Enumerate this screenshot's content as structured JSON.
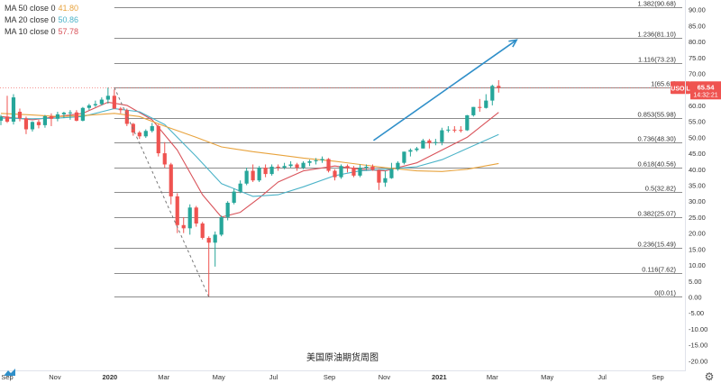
{
  "legend": [
    {
      "label": "MA 50 close 0",
      "value": "41.80",
      "color": "#e8a33d"
    },
    {
      "label": "MA 20 close 0",
      "value": "50.86",
      "color": "#4bb3c8"
    },
    {
      "label": "MA 10 close 0",
      "value": "57.78",
      "color": "#d9535a"
    }
  ],
  "chart_data": {
    "type": "candlestick",
    "title": "美国原油期货周图",
    "symbol": "USOIL",
    "last_price": "65.54",
    "countdown": "14:32:21",
    "up_color": "#26a69a",
    "down_color": "#ef5350",
    "ylim": [
      -23,
      93
    ],
    "y_ticks": [
      90,
      85,
      80,
      75,
      70,
      65,
      60,
      55,
      50,
      45,
      40,
      35,
      30,
      25,
      20,
      15,
      10,
      5,
      0,
      -5,
      -10,
      -15,
      -20
    ],
    "y_tick_labels": [
      "90.00",
      "85.00",
      "80.00",
      "75.00",
      "70.00",
      "65.00",
      "60.00",
      "55.00",
      "50.00",
      "45.00",
      "40.00",
      "35.00",
      "30.00",
      "25.00",
      "20.00",
      "15.00",
      "10.00",
      "5.00",
      "0.00",
      "-5.00",
      "-10.00",
      "-15.00",
      "-20.00"
    ],
    "x_range": [
      "2019-09-01",
      "2021-10-01"
    ],
    "x_ticks": [
      {
        "label": "Sep",
        "date": "2019-09-01",
        "bold": false
      },
      {
        "label": "Nov",
        "date": "2019-11-01",
        "bold": false
      },
      {
        "label": "2020",
        "date": "2020-01-01",
        "bold": true
      },
      {
        "label": "Mar",
        "date": "2020-03-01",
        "bold": false
      },
      {
        "label": "May",
        "date": "2020-05-01",
        "bold": false
      },
      {
        "label": "Jul",
        "date": "2020-07-01",
        "bold": false
      },
      {
        "label": "Sep",
        "date": "2020-09-01",
        "bold": false
      },
      {
        "label": "Nov",
        "date": "2020-11-01",
        "bold": false
      },
      {
        "label": "2021",
        "date": "2021-01-01",
        "bold": true
      },
      {
        "label": "Mar",
        "date": "2021-03-01",
        "bold": false
      },
      {
        "label": "May",
        "date": "2021-05-01",
        "bold": false
      },
      {
        "label": "Jul",
        "date": "2021-07-01",
        "bold": false
      },
      {
        "label": "Sep",
        "date": "2021-09-01",
        "bold": false
      }
    ],
    "fib_levels": [
      {
        "label": "1.382(90.68)",
        "value": 90.68
      },
      {
        "label": "1.236(81.10)",
        "value": 81.1
      },
      {
        "label": "1.116(73.23)",
        "value": 73.23
      },
      {
        "label": "1(65.62)",
        "value": 65.62
      },
      {
        "label": "0.853(55.98)",
        "value": 55.98
      },
      {
        "label": "0.736(48.30)",
        "value": 48.3
      },
      {
        "label": "0.618(40.56)",
        "value": 40.56
      },
      {
        "label": "0.5(32.82)",
        "value": 32.82
      },
      {
        "label": "0.382(25.07)",
        "value": 25.07
      },
      {
        "label": "0.236(15.49)",
        "value": 15.49
      },
      {
        "label": "0.116(7.62)",
        "value": 7.62
      },
      {
        "label": "0(0.01)",
        "value": 0.01
      }
    ],
    "fib_range": [
      "2020-01-06",
      "2021-10-01"
    ],
    "dashed_line": [
      {
        "date": "2020-01-06",
        "value": 65.62
      },
      {
        "date": "2020-04-20",
        "value": 0.01
      }
    ],
    "trend_arrow": {
      "start": {
        "date": "2020-10-20",
        "value": 49
      },
      "end": {
        "date": "2021-03-28",
        "value": 80.5
      },
      "color": "#2f8fc9"
    },
    "candles": [
      {
        "date": "2019-09-02",
        "o": 55.2,
        "h": 57.0,
        "l": 53.8,
        "c": 56.5
      },
      {
        "date": "2019-09-09",
        "o": 56.5,
        "h": 63.0,
        "l": 54.5,
        "c": 54.9
      },
      {
        "date": "2019-09-16",
        "o": 54.9,
        "h": 63.5,
        "l": 54.0,
        "c": 62.5
      },
      {
        "date": "2019-09-23",
        "o": 58.0,
        "h": 59.0,
        "l": 55.0,
        "c": 55.9
      },
      {
        "date": "2019-09-30",
        "o": 55.9,
        "h": 56.5,
        "l": 51.0,
        "c": 52.5
      },
      {
        "date": "2019-10-07",
        "o": 52.5,
        "h": 55.0,
        "l": 51.8,
        "c": 54.8
      },
      {
        "date": "2019-10-14",
        "o": 54.8,
        "h": 55.5,
        "l": 52.8,
        "c": 53.8
      },
      {
        "date": "2019-10-21",
        "o": 53.8,
        "h": 57.0,
        "l": 53.0,
        "c": 56.6
      },
      {
        "date": "2019-10-28",
        "o": 56.6,
        "h": 57.5,
        "l": 53.5,
        "c": 55.8
      },
      {
        "date": "2019-11-04",
        "o": 55.8,
        "h": 58.0,
        "l": 55.0,
        "c": 57.2
      },
      {
        "date": "2019-11-11",
        "o": 57.2,
        "h": 58.0,
        "l": 56.0,
        "c": 57.7
      },
      {
        "date": "2019-11-18",
        "o": 57.7,
        "h": 58.5,
        "l": 55.5,
        "c": 57.8
      },
      {
        "date": "2019-11-25",
        "o": 57.8,
        "h": 58.5,
        "l": 55.0,
        "c": 55.2
      },
      {
        "date": "2019-12-02",
        "o": 55.2,
        "h": 59.5,
        "l": 55.0,
        "c": 59.2
      },
      {
        "date": "2019-12-09",
        "o": 59.2,
        "h": 60.5,
        "l": 58.5,
        "c": 60.0
      },
      {
        "date": "2019-12-16",
        "o": 60.0,
        "h": 61.5,
        "l": 59.5,
        "c": 60.4
      },
      {
        "date": "2019-12-23",
        "o": 60.4,
        "h": 62.5,
        "l": 60.0,
        "c": 61.8
      },
      {
        "date": "2019-12-30",
        "o": 61.8,
        "h": 65.6,
        "l": 60.5,
        "c": 63.0
      },
      {
        "date": "2020-01-06",
        "o": 63.0,
        "h": 65.0,
        "l": 58.8,
        "c": 59.0
      },
      {
        "date": "2020-01-13",
        "o": 59.0,
        "h": 59.5,
        "l": 57.5,
        "c": 58.5
      },
      {
        "date": "2020-01-20",
        "o": 58.5,
        "h": 59.0,
        "l": 53.5,
        "c": 54.2
      },
      {
        "date": "2020-01-27",
        "o": 54.2,
        "h": 54.5,
        "l": 50.5,
        "c": 51.5
      },
      {
        "date": "2020-02-03",
        "o": 51.5,
        "h": 52.0,
        "l": 49.5,
        "c": 50.3
      },
      {
        "date": "2020-02-10",
        "o": 50.3,
        "h": 52.5,
        "l": 49.8,
        "c": 52.0
      },
      {
        "date": "2020-02-17",
        "o": 52.0,
        "h": 54.5,
        "l": 51.5,
        "c": 53.5
      },
      {
        "date": "2020-02-24",
        "o": 53.5,
        "h": 54.0,
        "l": 44.0,
        "c": 45.0
      },
      {
        "date": "2020-03-02",
        "o": 45.0,
        "h": 48.5,
        "l": 40.5,
        "c": 41.5
      },
      {
        "date": "2020-03-09",
        "o": 41.5,
        "h": 42.0,
        "l": 29.0,
        "c": 31.5
      },
      {
        "date": "2020-03-16",
        "o": 31.5,
        "h": 32.5,
        "l": 20.0,
        "c": 22.5
      },
      {
        "date": "2020-03-23",
        "o": 22.5,
        "h": 25.0,
        "l": 20.0,
        "c": 21.5
      },
      {
        "date": "2020-03-30",
        "o": 21.5,
        "h": 29.0,
        "l": 19.5,
        "c": 28.0
      },
      {
        "date": "2020-04-06",
        "o": 28.0,
        "h": 28.5,
        "l": 22.0,
        "c": 23.0
      },
      {
        "date": "2020-04-13",
        "o": 23.0,
        "h": 23.5,
        "l": 18.0,
        "c": 18.5
      },
      {
        "date": "2020-04-20",
        "o": 18.5,
        "h": 19.0,
        "l": 0.0,
        "c": 17.0
      },
      {
        "date": "2020-04-27",
        "o": 17.0,
        "h": 20.5,
        "l": 9.5,
        "c": 19.5
      },
      {
        "date": "2020-05-04",
        "o": 19.5,
        "h": 25.5,
        "l": 19.0,
        "c": 25.0
      },
      {
        "date": "2020-05-11",
        "o": 25.0,
        "h": 30.0,
        "l": 24.0,
        "c": 29.5
      },
      {
        "date": "2020-05-18",
        "o": 29.5,
        "h": 34.0,
        "l": 29.0,
        "c": 33.0
      },
      {
        "date": "2020-05-25",
        "o": 33.0,
        "h": 36.5,
        "l": 32.5,
        "c": 35.5
      },
      {
        "date": "2020-06-01",
        "o": 35.5,
        "h": 40.5,
        "l": 35.0,
        "c": 39.5
      },
      {
        "date": "2020-06-08",
        "o": 39.5,
        "h": 41.5,
        "l": 36.0,
        "c": 36.5
      },
      {
        "date": "2020-06-15",
        "o": 36.5,
        "h": 41.0,
        "l": 36.0,
        "c": 40.5
      },
      {
        "date": "2020-06-22",
        "o": 40.5,
        "h": 41.5,
        "l": 37.5,
        "c": 38.5
      },
      {
        "date": "2020-06-29",
        "o": 38.5,
        "h": 41.5,
        "l": 38.0,
        "c": 40.8
      },
      {
        "date": "2020-07-06",
        "o": 40.8,
        "h": 41.5,
        "l": 39.5,
        "c": 40.5
      },
      {
        "date": "2020-07-13",
        "o": 40.5,
        "h": 42.0,
        "l": 40.0,
        "c": 41.0
      },
      {
        "date": "2020-07-20",
        "o": 41.0,
        "h": 42.5,
        "l": 40.5,
        "c": 41.5
      },
      {
        "date": "2020-07-27",
        "o": 41.5,
        "h": 42.0,
        "l": 39.5,
        "c": 40.5
      },
      {
        "date": "2020-08-03",
        "o": 40.5,
        "h": 42.5,
        "l": 40.0,
        "c": 42.0
      },
      {
        "date": "2020-08-10",
        "o": 42.0,
        "h": 43.0,
        "l": 41.0,
        "c": 42.5
      },
      {
        "date": "2020-08-17",
        "o": 42.5,
        "h": 43.5,
        "l": 41.5,
        "c": 42.8
      },
      {
        "date": "2020-08-24",
        "o": 42.8,
        "h": 44.0,
        "l": 42.0,
        "c": 43.2
      },
      {
        "date": "2020-08-31",
        "o": 43.2,
        "h": 43.5,
        "l": 39.0,
        "c": 39.5
      },
      {
        "date": "2020-09-07",
        "o": 39.5,
        "h": 40.0,
        "l": 36.5,
        "c": 37.5
      },
      {
        "date": "2020-09-14",
        "o": 37.5,
        "h": 41.5,
        "l": 37.0,
        "c": 41.0
      },
      {
        "date": "2020-09-21",
        "o": 41.0,
        "h": 41.5,
        "l": 39.0,
        "c": 40.5
      },
      {
        "date": "2020-09-28",
        "o": 40.5,
        "h": 41.0,
        "l": 37.5,
        "c": 38.0
      },
      {
        "date": "2020-10-05",
        "o": 38.0,
        "h": 41.5,
        "l": 37.5,
        "c": 40.5
      },
      {
        "date": "2020-10-12",
        "o": 40.5,
        "h": 41.5,
        "l": 39.5,
        "c": 40.8
      },
      {
        "date": "2020-10-19",
        "o": 40.8,
        "h": 41.5,
        "l": 39.5,
        "c": 39.8
      },
      {
        "date": "2020-10-26",
        "o": 39.8,
        "h": 40.0,
        "l": 33.5,
        "c": 35.8
      },
      {
        "date": "2020-11-02",
        "o": 35.8,
        "h": 39.5,
        "l": 34.5,
        "c": 37.2
      },
      {
        "date": "2020-11-09",
        "o": 37.2,
        "h": 42.0,
        "l": 37.0,
        "c": 40.0
      },
      {
        "date": "2020-11-16",
        "o": 40.0,
        "h": 42.5,
        "l": 39.5,
        "c": 42.0
      },
      {
        "date": "2020-11-23",
        "o": 42.0,
        "h": 45.5,
        "l": 41.5,
        "c": 45.5
      },
      {
        "date": "2020-11-30",
        "o": 45.5,
        "h": 46.5,
        "l": 44.0,
        "c": 46.0
      },
      {
        "date": "2020-12-07",
        "o": 46.0,
        "h": 47.0,
        "l": 45.5,
        "c": 46.5
      },
      {
        "date": "2020-12-14",
        "o": 46.5,
        "h": 49.5,
        "l": 46.5,
        "c": 49.0
      },
      {
        "date": "2020-12-21",
        "o": 49.0,
        "h": 49.5,
        "l": 46.5,
        "c": 48.2
      },
      {
        "date": "2020-12-28",
        "o": 48.2,
        "h": 49.5,
        "l": 47.5,
        "c": 48.5
      },
      {
        "date": "2021-01-04",
        "o": 48.5,
        "h": 53.0,
        "l": 47.5,
        "c": 52.2
      },
      {
        "date": "2021-01-11",
        "o": 52.2,
        "h": 53.5,
        "l": 51.5,
        "c": 52.4
      },
      {
        "date": "2021-01-18",
        "o": 52.4,
        "h": 53.5,
        "l": 51.5,
        "c": 52.3
      },
      {
        "date": "2021-01-25",
        "o": 52.3,
        "h": 53.5,
        "l": 51.5,
        "c": 52.2
      },
      {
        "date": "2021-02-01",
        "o": 52.2,
        "h": 57.0,
        "l": 52.0,
        "c": 56.9
      },
      {
        "date": "2021-02-08",
        "o": 56.9,
        "h": 59.5,
        "l": 56.5,
        "c": 59.5
      },
      {
        "date": "2021-02-15",
        "o": 59.5,
        "h": 62.0,
        "l": 58.0,
        "c": 59.2
      },
      {
        "date": "2021-02-22",
        "o": 59.2,
        "h": 63.5,
        "l": 59.0,
        "c": 61.5
      },
      {
        "date": "2021-03-01",
        "o": 61.5,
        "h": 66.5,
        "l": 60.0,
        "c": 66.1
      },
      {
        "date": "2021-03-08",
        "o": 66.1,
        "h": 67.9,
        "l": 64.0,
        "c": 65.54
      }
    ],
    "ma_series": [
      {
        "name": "MA 10 close 0",
        "color": "#d9535a",
        "points": [
          [
            "2019-09-02",
            56.5
          ],
          [
            "2019-10-07",
            55.5
          ],
          [
            "2019-11-04",
            56.5
          ],
          [
            "2019-12-02",
            57.5
          ],
          [
            "2019-12-30",
            61.0
          ],
          [
            "2020-01-20",
            60.0
          ],
          [
            "2020-02-17",
            55.5
          ],
          [
            "2020-03-16",
            46.0
          ],
          [
            "2020-04-13",
            32.0
          ],
          [
            "2020-05-04",
            25.0
          ],
          [
            "2020-05-25",
            26.5
          ],
          [
            "2020-06-15",
            31.0
          ],
          [
            "2020-07-06",
            36.0
          ],
          [
            "2020-08-03",
            39.5
          ],
          [
            "2020-09-07",
            41.0
          ],
          [
            "2020-10-05",
            40.0
          ],
          [
            "2020-11-02",
            39.5
          ],
          [
            "2020-12-07",
            42.0
          ],
          [
            "2021-01-04",
            46.0
          ],
          [
            "2021-02-01",
            50.0
          ],
          [
            "2021-03-08",
            57.8
          ]
        ]
      },
      {
        "name": "MA 20 close 0",
        "color": "#4bb3c8",
        "points": [
          [
            "2019-09-02",
            56.0
          ],
          [
            "2019-10-07",
            55.8
          ],
          [
            "2019-11-04",
            56.0
          ],
          [
            "2019-12-02",
            56.5
          ],
          [
            "2020-01-06",
            59.0
          ],
          [
            "2020-02-03",
            58.0
          ],
          [
            "2020-03-02",
            54.0
          ],
          [
            "2020-04-06",
            44.0
          ],
          [
            "2020-05-04",
            35.5
          ],
          [
            "2020-06-08",
            31.5
          ],
          [
            "2020-07-06",
            32.0
          ],
          [
            "2020-08-03",
            34.5
          ],
          [
            "2020-09-07",
            38.0
          ],
          [
            "2020-10-05",
            39.5
          ],
          [
            "2020-11-02",
            40.0
          ],
          [
            "2020-12-07",
            40.8
          ],
          [
            "2021-01-04",
            43.0
          ],
          [
            "2021-02-01",
            46.5
          ],
          [
            "2021-03-08",
            50.9
          ]
        ]
      },
      {
        "name": "MA 50 close 0",
        "color": "#e8a33d",
        "points": [
          [
            "2019-09-02",
            57.5
          ],
          [
            "2019-10-07",
            57.0
          ],
          [
            "2019-11-04",
            56.5
          ],
          [
            "2019-12-02",
            56.8
          ],
          [
            "2020-01-06",
            57.5
          ],
          [
            "2020-02-03",
            56.5
          ],
          [
            "2020-03-02",
            53.5
          ],
          [
            "2020-04-06",
            50.0
          ],
          [
            "2020-05-04",
            47.0
          ],
          [
            "2020-06-08",
            45.5
          ],
          [
            "2020-07-06",
            44.5
          ],
          [
            "2020-08-03",
            43.5
          ],
          [
            "2020-09-07",
            42.5
          ],
          [
            "2020-10-05",
            41.5
          ],
          [
            "2020-11-02",
            40.5
          ],
          [
            "2020-12-07",
            39.5
          ],
          [
            "2021-01-04",
            39.3
          ],
          [
            "2021-02-01",
            40.0
          ],
          [
            "2021-03-08",
            41.8
          ]
        ]
      }
    ]
  }
}
